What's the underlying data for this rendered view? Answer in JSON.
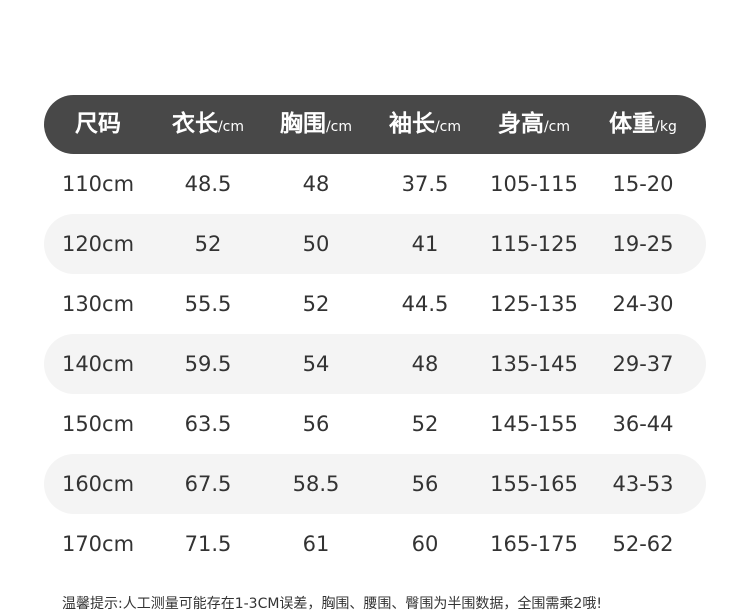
{
  "header": [
    {
      "label": "尺码",
      "unit": ""
    },
    {
      "label": "衣长",
      "unit": "/cm"
    },
    {
      "label": "胸围",
      "unit": "/cm"
    },
    {
      "label": "袖长",
      "unit": "/cm"
    },
    {
      "label": "身高",
      "unit": "/cm"
    },
    {
      "label": "体重",
      "unit": "/kg"
    }
  ],
  "rows": [
    [
      "110cm",
      "48.5",
      "48",
      "37.5",
      "105-115",
      "15-20"
    ],
    [
      "120cm",
      "52",
      "50",
      "41",
      "115-125",
      "19-25"
    ],
    [
      "130cm",
      "55.5",
      "52",
      "44.5",
      "125-135",
      "24-30"
    ],
    [
      "140cm",
      "59.5",
      "54",
      "48",
      "135-145",
      "29-37"
    ],
    [
      "150cm",
      "63.5",
      "56",
      "52",
      "145-155",
      "36-44"
    ],
    [
      "160cm",
      "67.5",
      "58.5",
      "56",
      "155-165",
      "43-53"
    ],
    [
      "170cm",
      "71.5",
      "61",
      "60",
      "165-175",
      "52-62"
    ]
  ],
  "note": "温馨提示:人工测量可能存在1-3CM误差，胸围、腰围、臀围为半围数据，全围需乘2哦!",
  "colors": {
    "header_bg": "#484848",
    "stripe_bg": "#f4f4f4",
    "text": "#333333"
  }
}
